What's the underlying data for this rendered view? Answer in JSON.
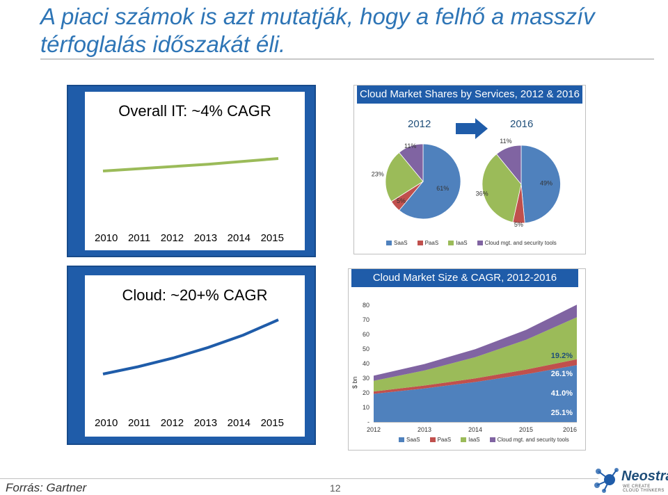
{
  "slide": {
    "title": "A piaci számok is azt mutatják, hogy a felhő a masszív térfoglalás időszakát éli.",
    "source": "Forrás: Gartner",
    "page_number": "12",
    "logo_name": "Neostratus",
    "logo_tagline": "WE CREATE CLOUD THINKERS"
  },
  "overall_it": {
    "title": "Overall IT: ~4% CAGR",
    "years": [
      "2010",
      "2011",
      "2012",
      "2013",
      "2014",
      "2015"
    ]
  },
  "cloud": {
    "title": "Cloud:  ~20+% CAGR",
    "years": [
      "2010",
      "2011",
      "2012",
      "2013",
      "2014",
      "2015"
    ]
  },
  "shares": {
    "header": "Cloud Market Shares by Services, 2012 & 2016",
    "year_left": "2012",
    "year_right": "2016",
    "legend": [
      "SaaS",
      "PaaS",
      "IaaS",
      "Cloud mgt. and security tools"
    ]
  },
  "size": {
    "header": "Cloud Market Size & CAGR, 2012-2016",
    "yunit": "$ bn",
    "legend": [
      "SaaS",
      "PaaS",
      "IaaS",
      "Cloud mgt. and security tools"
    ],
    "cagr_labels": [
      "19.2%",
      "26.1%",
      "41.0%",
      "25.1%"
    ]
  },
  "colors": {
    "saas": "#4f81bd",
    "paas": "#c0504d",
    "iaas": "#9bbb59",
    "mgmt": "#8064a2",
    "line_overall": "#9bbb59",
    "line_cloud": "#1f5ca9",
    "frame": "#1f5ca9"
  },
  "chart_data": [
    {
      "type": "line",
      "title": "Overall IT: ~4% CAGR",
      "x": [
        "2010",
        "2011",
        "2012",
        "2013",
        "2014",
        "2015"
      ],
      "series": [
        {
          "values": [
            100,
            104,
            108,
            112,
            117,
            122
          ]
        }
      ]
    },
    {
      "type": "line",
      "title": "Cloud:  ~20+% CAGR",
      "x": [
        "2010",
        "2011",
        "2012",
        "2013",
        "2014",
        "2015"
      ],
      "series": [
        {
          "values": [
            100,
            120,
            144,
            173,
            207,
            249
          ]
        }
      ]
    },
    {
      "type": "pie",
      "title": "2012",
      "labels": [
        "SaaS",
        "PaaS",
        "IaaS",
        "Cloud mgt. and security tools"
      ],
      "values": [
        61,
        5,
        23,
        11
      ]
    },
    {
      "type": "pie",
      "title": "2016",
      "labels": [
        "SaaS",
        "PaaS",
        "IaaS",
        "Cloud mgt. and security tools"
      ],
      "values": [
        49,
        5,
        36,
        11
      ]
    },
    {
      "type": "area",
      "title": "Cloud Market Size & CAGR, 2012-2016",
      "ylabel": "$ bn",
      "categories": [
        "2012",
        "2013",
        "2014",
        "2015",
        "2016"
      ],
      "yticks": [
        "-",
        "10",
        "20",
        "30",
        "40",
        "50",
        "60",
        "70",
        "80"
      ],
      "ylim": [
        0,
        80
      ],
      "series": [
        {
          "name": "SaaS",
          "values": [
            19.3,
            23.0,
            27.4,
            32.7,
            39.0
          ]
        },
        {
          "name": "PaaS",
          "values": [
            1.6,
            2.0,
            2.5,
            3.2,
            4.0
          ]
        },
        {
          "name": "IaaS",
          "values": [
            7.3,
            10.3,
            14.5,
            20.4,
            28.8
          ]
        },
        {
          "name": "Cloud mgt. and security tools",
          "values": [
            3.5,
            4.4,
            5.5,
            6.8,
            8.6
          ]
        }
      ]
    }
  ]
}
